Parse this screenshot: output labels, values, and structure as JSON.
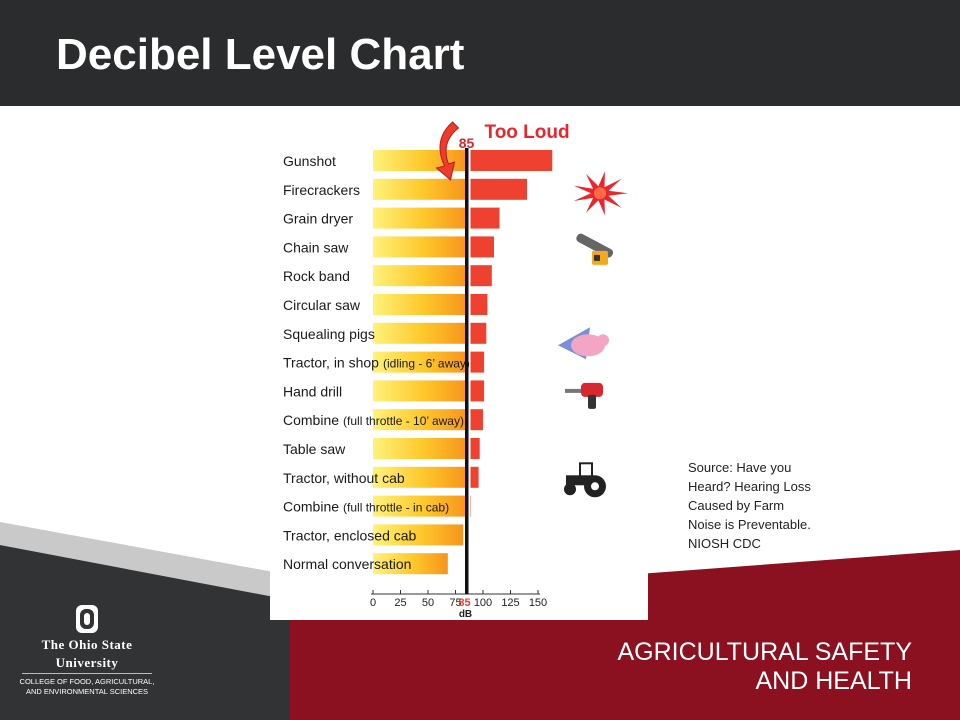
{
  "slide": {
    "title": "Decibel Level Chart",
    "source_lines": [
      "Source: Have you",
      "Heard? Hearing Loss",
      "Caused by Farm",
      "Noise is Preventable.",
      "NIOSH CDC"
    ],
    "colors": {
      "header": "#2b2c2e",
      "footer_dark": "#323335",
      "footer_red": "#8b1120",
      "footer_gray": "#c4c4c4",
      "bar_safe": "#fbb21a",
      "bar_loud": "#ef4130",
      "threshold_line": "#111111",
      "arrow": "#ee3b2b"
    }
  },
  "branding": {
    "university_line1": "The Ohio State",
    "university_line2": "University",
    "college_line1": "COLLEGE OF FOOD, AGRICULTURAL,",
    "college_line2": "AND ENVIRONMENTAL SCIENCES",
    "program_line1": "AGRICULTURAL SAFETY",
    "program_line2": "AND HEALTH",
    "logo_letter": "O"
  },
  "chart_data": {
    "type": "bar",
    "orientation": "horizontal",
    "threshold": 85,
    "threshold_label": "85",
    "threshold_caption": "Too Loud",
    "xlabel": "dB",
    "xlim": [
      0,
      155
    ],
    "xticks": [
      0,
      25,
      50,
      75,
      100,
      125,
      150
    ],
    "categories": [
      {
        "name": "Gunshot",
        "note": "",
        "value": 163,
        "icon": ""
      },
      {
        "name": "Firecrackers",
        "note": "",
        "value": 140,
        "icon": "explosion-icon"
      },
      {
        "name": "Grain dryer",
        "note": "",
        "value": 115,
        "icon": ""
      },
      {
        "name": "Chain saw",
        "note": "",
        "value": 110,
        "icon": "chainsaw-icon"
      },
      {
        "name": "Rock band",
        "note": "",
        "value": 108,
        "icon": ""
      },
      {
        "name": "Circular saw",
        "note": "",
        "value": 104,
        "icon": ""
      },
      {
        "name": "Squealing pigs",
        "note": "",
        "value": 103,
        "icon": "pig-icon"
      },
      {
        "name": "Tractor, in shop",
        "note": "(idling - 6’ away)",
        "value": 101,
        "icon": ""
      },
      {
        "name": "Hand drill",
        "note": "",
        "value": 101,
        "icon": "hand-drill-icon"
      },
      {
        "name": "Combine",
        "note": "(full throttle - 10’ away)",
        "value": 100,
        "icon": ""
      },
      {
        "name": "Table saw",
        "note": "",
        "value": 97,
        "icon": ""
      },
      {
        "name": "Tractor, without cab",
        "note": "",
        "value": 96,
        "icon": "tractor-icon"
      },
      {
        "name": "Combine",
        "note": "(full throttle - in cab)",
        "value": 89,
        "icon": ""
      },
      {
        "name": "Tractor, enclosed cab",
        "note": "",
        "value": 82,
        "icon": ""
      },
      {
        "name": "Normal conversation",
        "note": "",
        "value": 68,
        "icon": ""
      }
    ]
  }
}
